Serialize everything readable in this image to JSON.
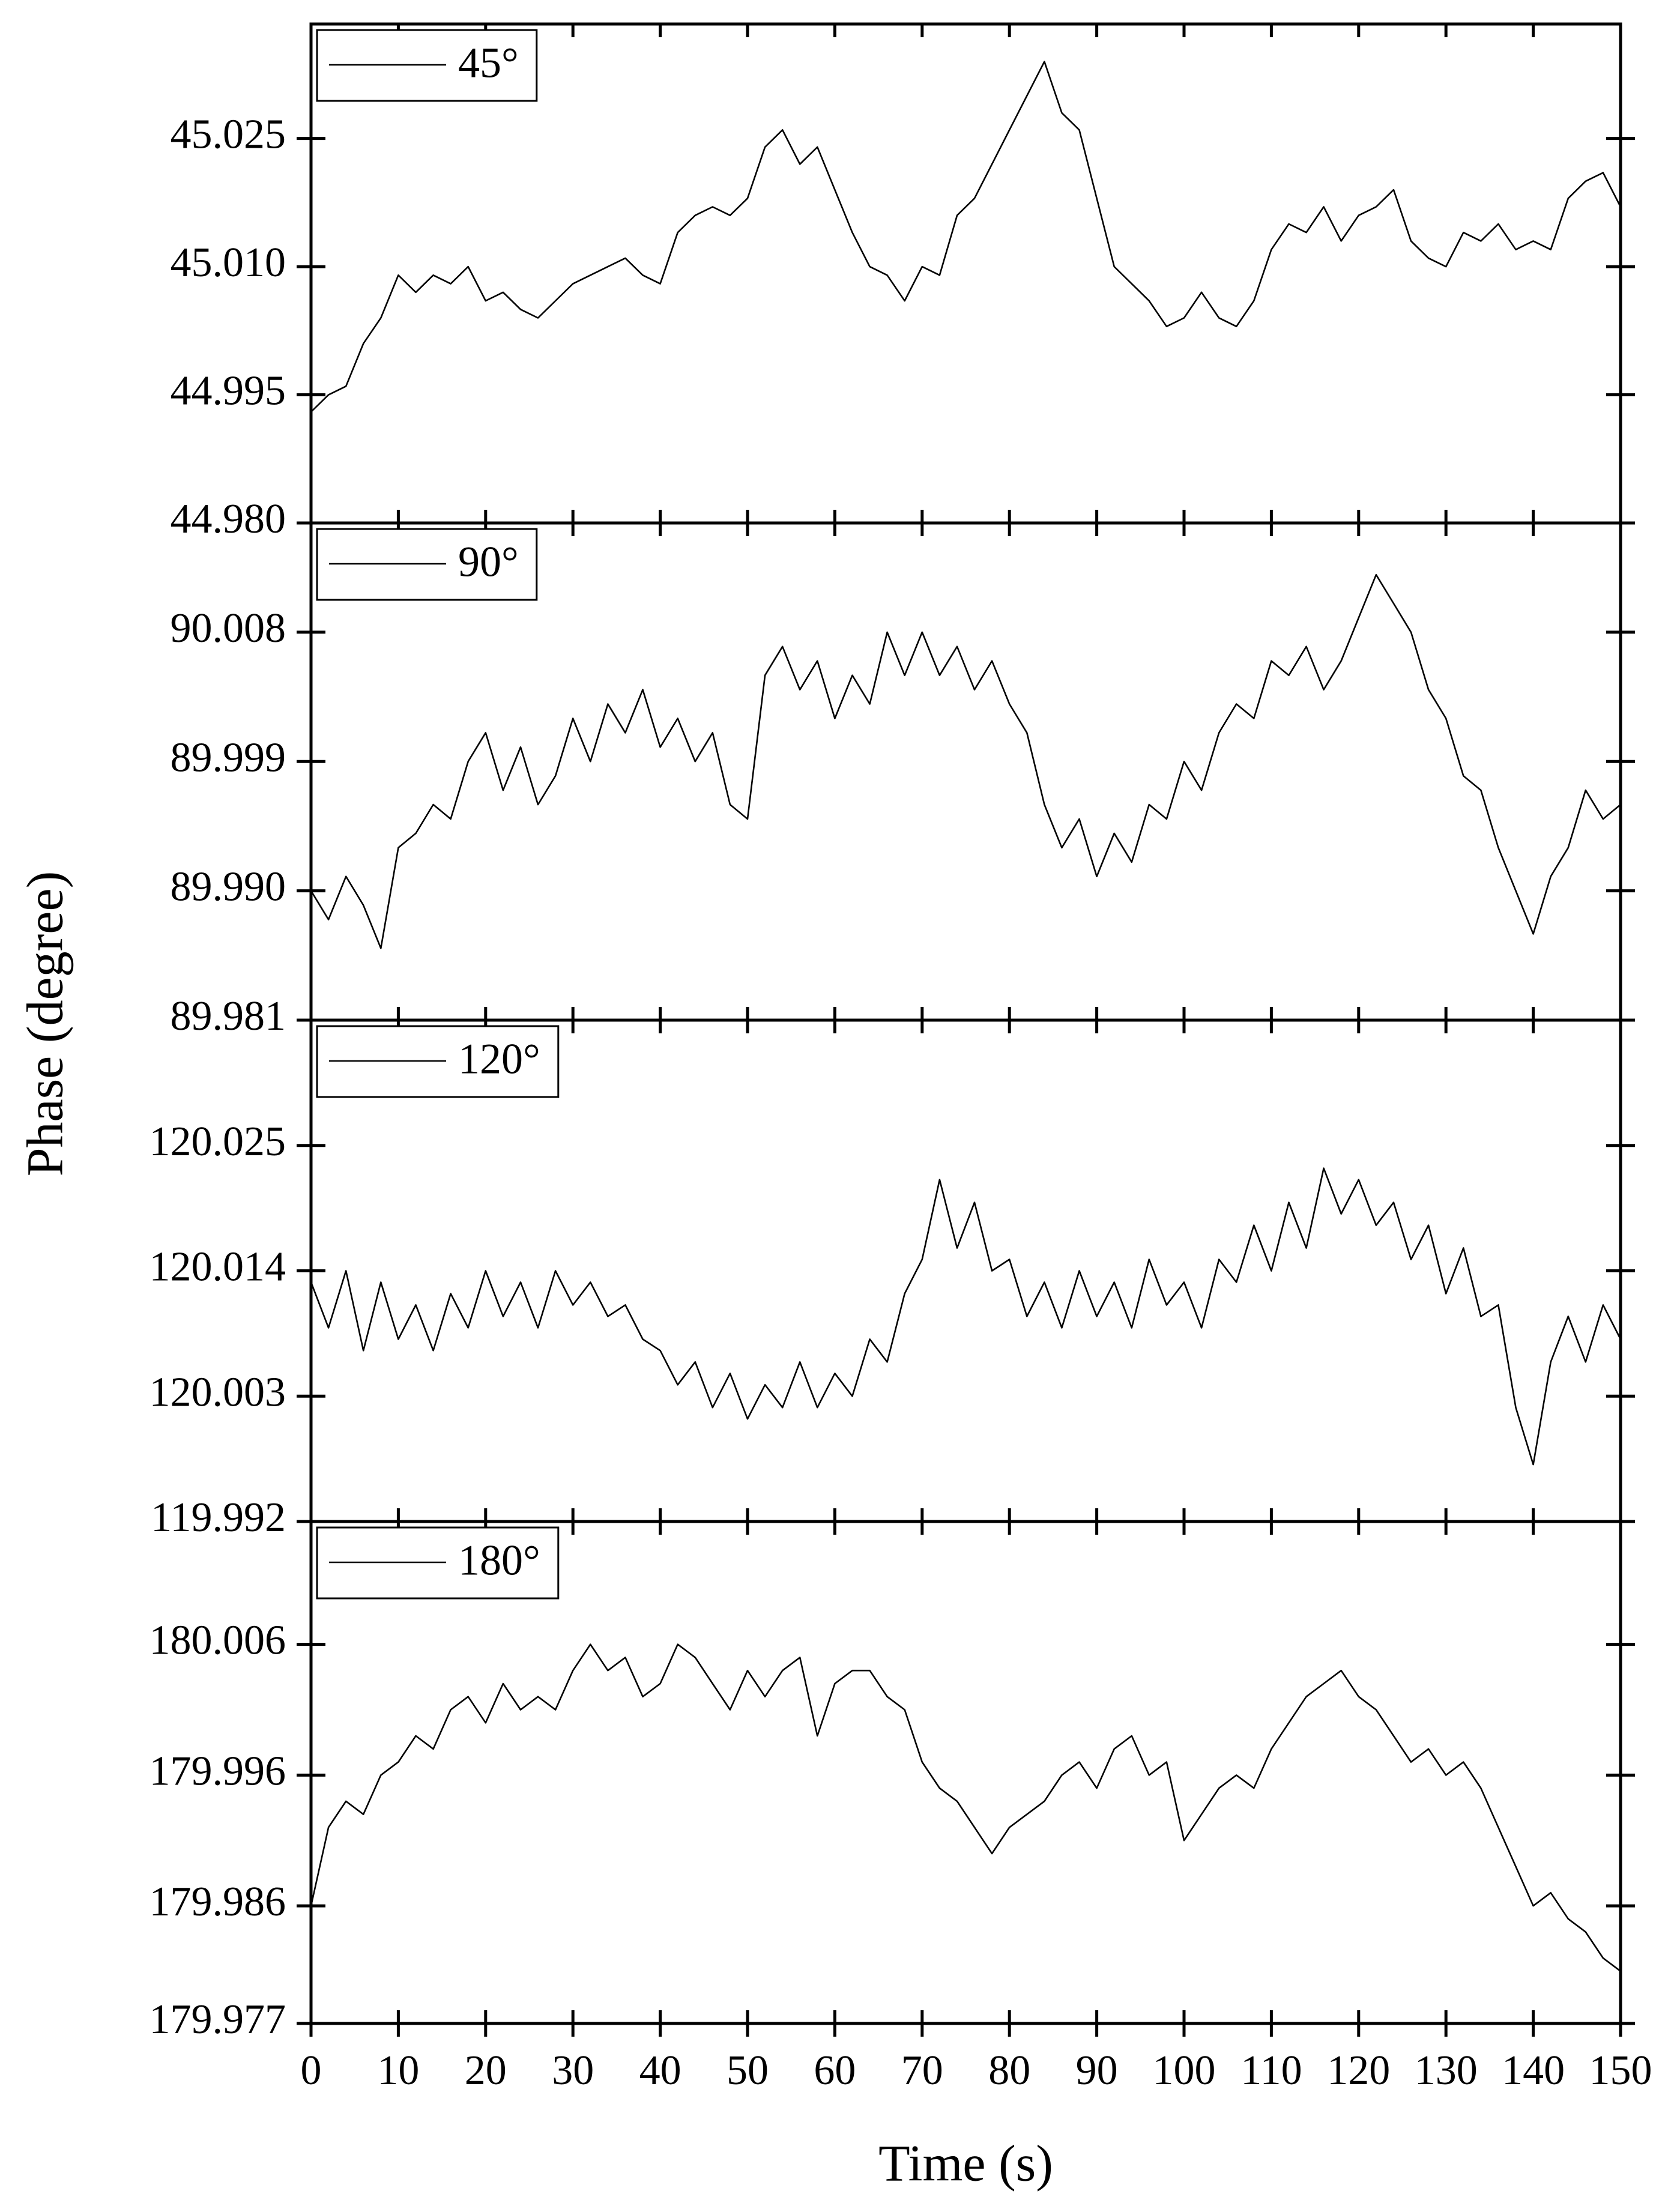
{
  "chart_data": [
    {
      "type": "line",
      "ylabel": "Phase (degree)",
      "series": [
        {
          "name": "45°",
          "color": "#000000",
          "values": [
            44.993,
            44.995,
            44.996,
            45.001,
            45.004,
            45.009,
            45.007,
            45.009,
            45.008,
            45.01,
            45.006,
            45.007,
            45.005,
            45.004,
            45.006,
            45.008,
            45.009,
            45.01,
            45.011,
            45.009,
            45.008,
            45.014,
            45.016,
            45.017,
            45.016,
            45.018,
            45.024,
            45.026,
            45.022,
            45.024,
            45.019,
            45.014,
            45.01,
            45.009,
            45.006,
            45.01,
            45.009,
            45.016,
            45.018,
            45.022,
            45.026,
            45.03,
            45.034,
            45.028,
            45.026,
            45.018,
            45.01,
            45.008,
            45.006,
            45.003,
            45.004,
            45.007,
            45.004,
            45.003,
            45.006,
            45.012,
            45.015,
            45.014,
            45.017,
            45.013,
            45.016,
            45.017,
            45.019,
            45.013,
            45.011,
            45.01,
            45.014,
            45.013,
            45.015,
            45.012,
            45.013,
            45.012,
            45.018,
            45.02,
            45.021,
            45.017
          ]
        }
      ],
      "x": [
        0,
        2,
        4,
        6,
        8,
        10,
        12,
        14,
        16,
        18,
        20,
        22,
        24,
        26,
        28,
        30,
        32,
        34,
        36,
        38,
        40,
        42,
        44,
        46,
        48,
        50,
        52,
        54,
        56,
        58,
        60,
        62,
        64,
        66,
        68,
        70,
        72,
        74,
        76,
        78,
        80,
        82,
        84,
        86,
        88,
        90,
        92,
        94,
        96,
        98,
        100,
        102,
        104,
        106,
        108,
        110,
        112,
        114,
        116,
        118,
        120,
        122,
        124,
        126,
        128,
        130,
        132,
        134,
        136,
        138,
        140,
        142,
        144,
        146,
        148,
        150
      ],
      "xlim": [
        0,
        150
      ],
      "xticks": [
        0,
        10,
        20,
        30,
        40,
        50,
        60,
        70,
        80,
        90,
        100,
        110,
        120,
        130,
        140,
        150
      ],
      "ylim": [
        44.98,
        45.0384
      ],
      "yticks": [
        {
          "value": 44.98,
          "label": "44.980"
        },
        44.995,
        {
          "value": 45.01,
          "label": "45.010"
        },
        45.025
      ],
      "legend": "upper left"
    },
    {
      "type": "line",
      "series": [
        {
          "name": "90°",
          "color": "#000000",
          "values": [
            89.99,
            89.988,
            89.991,
            89.989,
            89.986,
            89.993,
            89.994,
            89.996,
            89.995,
            89.999,
            90.001,
            89.997,
            90.0,
            89.996,
            89.998,
            90.002,
            89.999,
            90.003,
            90.001,
            90.004,
            90.0,
            90.002,
            89.999,
            90.001,
            89.996,
            89.995,
            90.005,
            90.007,
            90.004,
            90.006,
            90.002,
            90.005,
            90.003,
            90.008,
            90.005,
            90.008,
            90.005,
            90.007,
            90.004,
            90.006,
            90.003,
            90.001,
            89.996,
            89.993,
            89.995,
            89.991,
            89.994,
            89.992,
            89.996,
            89.995,
            89.999,
            89.997,
            90.001,
            90.003,
            90.002,
            90.006,
            90.005,
            90.007,
            90.004,
            90.006,
            90.009,
            90.012,
            90.01,
            90.008,
            90.004,
            90.002,
            89.998,
            89.997,
            89.993,
            89.99,
            89.987,
            89.991,
            89.993,
            89.997,
            89.995,
            89.996
          ]
        }
      ],
      "x": [
        0,
        2,
        4,
        6,
        8,
        10,
        12,
        14,
        16,
        18,
        20,
        22,
        24,
        26,
        28,
        30,
        32,
        34,
        36,
        38,
        40,
        42,
        44,
        46,
        48,
        50,
        52,
        54,
        56,
        58,
        60,
        62,
        64,
        66,
        68,
        70,
        72,
        74,
        76,
        78,
        80,
        82,
        84,
        86,
        88,
        90,
        92,
        94,
        96,
        98,
        100,
        102,
        104,
        106,
        108,
        110,
        112,
        114,
        116,
        118,
        120,
        122,
        124,
        126,
        128,
        130,
        132,
        134,
        136,
        138,
        140,
        142,
        144,
        146,
        148,
        150
      ],
      "xlim": [
        0,
        150
      ],
      "xticks": [
        0,
        10,
        20,
        30,
        40,
        50,
        60,
        70,
        80,
        90,
        100,
        110,
        120,
        130,
        140,
        150
      ],
      "ylim": [
        89.981,
        90.0156
      ],
      "yticks": [
        89.981,
        {
          "value": 89.99,
          "label": "89.990"
        },
        89.999,
        90.008
      ],
      "legend": "upper left"
    },
    {
      "type": "line",
      "series": [
        {
          "name": "120°",
          "color": "#000000",
          "values": [
            120.013,
            120.009,
            120.014,
            120.007,
            120.013,
            120.008,
            120.011,
            120.007,
            120.012,
            120.009,
            120.014,
            120.01,
            120.013,
            120.009,
            120.014,
            120.011,
            120.013,
            120.01,
            120.011,
            120.008,
            120.007,
            120.004,
            120.006,
            120.002,
            120.005,
            120.001,
            120.004,
            120.002,
            120.006,
            120.002,
            120.005,
            120.003,
            120.008,
            120.006,
            120.012,
            120.015,
            120.022,
            120.016,
            120.02,
            120.014,
            120.015,
            120.01,
            120.013,
            120.009,
            120.014,
            120.01,
            120.013,
            120.009,
            120.015,
            120.011,
            120.013,
            120.009,
            120.015,
            120.013,
            120.018,
            120.014,
            120.02,
            120.016,
            120.023,
            120.019,
            120.022,
            120.018,
            120.02,
            120.015,
            120.018,
            120.012,
            120.016,
            120.01,
            120.011,
            120.002,
            119.997,
            120.006,
            120.01,
            120.006,
            120.011,
            120.008
          ]
        }
      ],
      "x": [
        0,
        2,
        4,
        6,
        8,
        10,
        12,
        14,
        16,
        18,
        20,
        22,
        24,
        26,
        28,
        30,
        32,
        34,
        36,
        38,
        40,
        42,
        44,
        46,
        48,
        50,
        52,
        54,
        56,
        58,
        60,
        62,
        64,
        66,
        68,
        70,
        72,
        74,
        76,
        78,
        80,
        82,
        84,
        86,
        88,
        90,
        92,
        94,
        96,
        98,
        100,
        102,
        104,
        106,
        108,
        110,
        112,
        114,
        116,
        118,
        120,
        122,
        124,
        126,
        128,
        130,
        132,
        134,
        136,
        138,
        140,
        142,
        144,
        146,
        148,
        150
      ],
      "xlim": [
        0,
        150
      ],
      "xticks": [
        0,
        10,
        20,
        30,
        40,
        50,
        60,
        70,
        80,
        90,
        100,
        110,
        120,
        130,
        140,
        150
      ],
      "ylim": [
        119.992,
        120.036
      ],
      "yticks": [
        119.992,
        120.003,
        120.014,
        120.025
      ],
      "legend": "upper left"
    },
    {
      "type": "line",
      "xlabel": "Time (s)",
      "series": [
        {
          "name": "180°",
          "color": "#000000",
          "values": [
            179.986,
            179.992,
            179.994,
            179.993,
            179.996,
            179.997,
            179.999,
            179.998,
            180.001,
            180.002,
            180.0,
            180.003,
            180.001,
            180.002,
            180.001,
            180.004,
            180.006,
            180.004,
            180.005,
            180.002,
            180.003,
            180.006,
            180.005,
            180.003,
            180.001,
            180.004,
            180.002,
            180.004,
            180.005,
            179.999,
            180.003,
            180.004,
            180.004,
            180.002,
            180.001,
            179.997,
            179.995,
            179.994,
            179.992,
            179.99,
            179.992,
            179.993,
            179.994,
            179.996,
            179.997,
            179.995,
            179.998,
            179.999,
            179.996,
            179.997,
            179.991,
            179.993,
            179.995,
            179.996,
            179.995,
            179.998,
            180.0,
            180.002,
            180.003,
            180.004,
            180.002,
            180.001,
            179.999,
            179.997,
            179.998,
            179.996,
            179.997,
            179.995,
            179.992,
            179.989,
            179.986,
            179.987,
            179.985,
            179.984,
            179.982,
            179.981
          ]
        }
      ],
      "x": [
        0,
        2,
        4,
        6,
        8,
        10,
        12,
        14,
        16,
        18,
        20,
        22,
        24,
        26,
        28,
        30,
        32,
        34,
        36,
        38,
        40,
        42,
        44,
        46,
        48,
        50,
        52,
        54,
        56,
        58,
        60,
        62,
        64,
        66,
        68,
        70,
        72,
        74,
        76,
        78,
        80,
        82,
        84,
        86,
        88,
        90,
        92,
        94,
        96,
        98,
        100,
        102,
        104,
        106,
        108,
        110,
        112,
        114,
        116,
        118,
        120,
        122,
        124,
        126,
        128,
        130,
        132,
        134,
        136,
        138,
        140,
        142,
        144,
        146,
        148,
        150
      ],
      "xlim": [
        0,
        150
      ],
      "xticks": [
        0,
        10,
        20,
        30,
        40,
        50,
        60,
        70,
        80,
        90,
        100,
        110,
        120,
        130,
        140,
        150
      ],
      "ylim": [
        179.977,
        180.0154
      ],
      "yticks": [
        179.977,
        179.986,
        179.996,
        180.006
      ],
      "legend": "upper left"
    }
  ]
}
